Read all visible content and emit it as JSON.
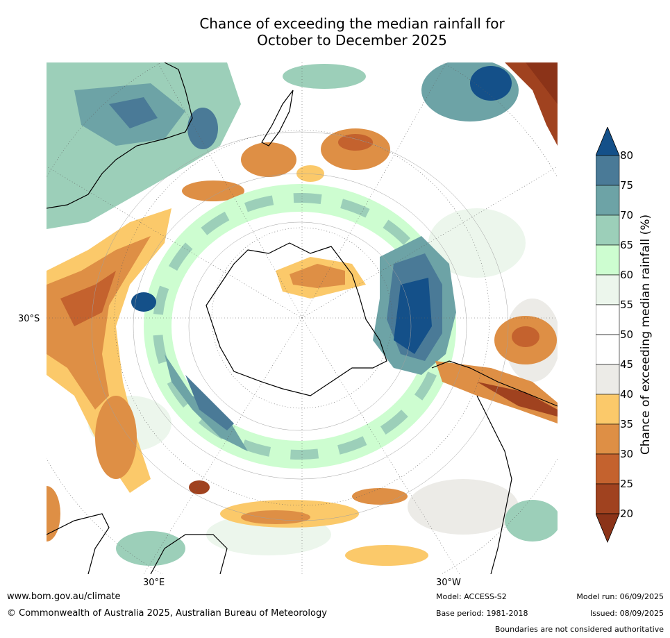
{
  "title": {
    "line1": "Chance of exceeding the median rainfall for",
    "line2": "October to December 2025"
  },
  "map": {
    "lat_label": "30°S",
    "lon_label_left": "30°E",
    "lon_label_right": "30°W"
  },
  "colorbar": {
    "label": "Chance of exceeding median rainfall (%)",
    "ticks": [
      "20",
      "25",
      "30",
      "35",
      "40",
      "45",
      "50",
      "55",
      "60",
      "65",
      "70",
      "75",
      "80"
    ],
    "colors": [
      "#a0421f",
      "#c4622e",
      "#de8f45",
      "#fbc96a",
      "#ecebe7",
      "#ffffff",
      "#ffffff",
      "#ecf6ec",
      "#cdfdd0",
      "#9ccfb9",
      "#6da3a6",
      "#4a7a97"
    ],
    "under_color": "#8b3318",
    "over_color": "#145089"
  },
  "footer": {
    "url": "www.bom.gov.au/climate",
    "copyright": "© Commonwealth of Australia 2025, Australian Bureau of Meteorology",
    "model": "Model: ACCESS-S2",
    "base_period": "Base period: 1981-2018",
    "model_run": "Model run: 06/09/2025",
    "issued": "Issued: 08/09/2025",
    "disclaimer": "Boundaries are not considered authoritative"
  }
}
